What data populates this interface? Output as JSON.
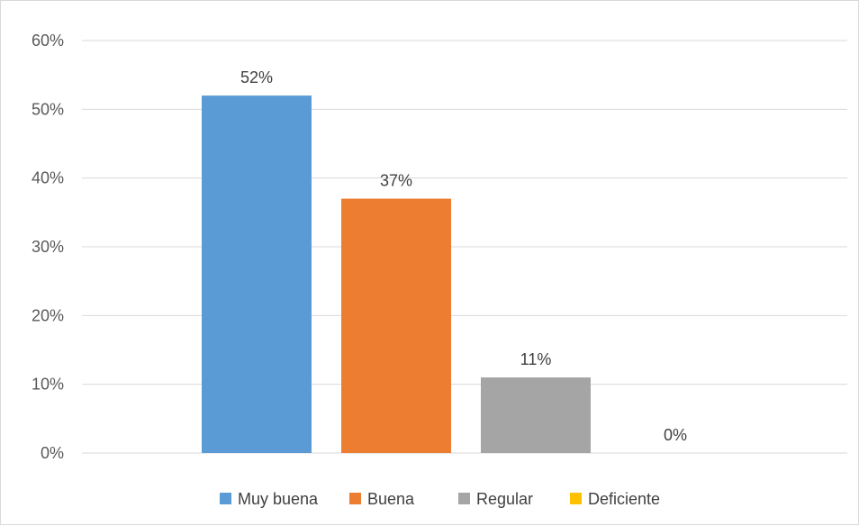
{
  "chart_data": {
    "type": "bar",
    "categories": [
      "Muy buena",
      "Buena",
      "Regular",
      "Deficiente"
    ],
    "values": [
      52,
      37,
      11,
      0
    ],
    "value_labels": [
      "52%",
      "37%",
      "11%",
      "0%"
    ],
    "colors": [
      "#5b9bd5",
      "#ed7d31",
      "#a5a5a5",
      "#ffc000"
    ],
    "ylim": [
      0,
      60
    ],
    "y_ticks": [
      0,
      10,
      20,
      30,
      40,
      50,
      60
    ],
    "y_tick_labels": [
      "0%",
      "10%",
      "20%",
      "30%",
      "40%",
      "50%",
      "60%"
    ],
    "grid": true,
    "legend_position": "bottom",
    "title": "",
    "xlabel": "",
    "ylabel": ""
  }
}
